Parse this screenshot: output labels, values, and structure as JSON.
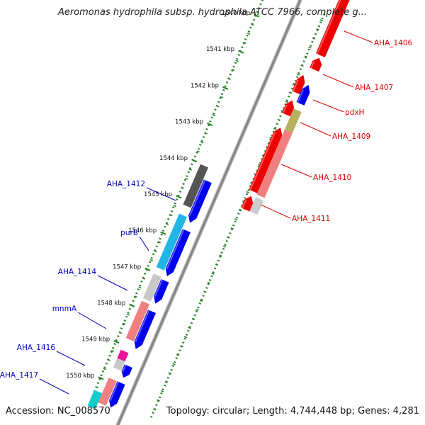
{
  "title": "Aeromonas hydrophila subsp. hydrophila ATCC 7966, complete g...",
  "accession": "Accession: NC_008570",
  "topology": "Topology: circular; Length: 4,744,448 bp; Genes: 4,281",
  "colors": {
    "label_right": "#dd0000",
    "label_left": "#0000bb",
    "backbone": "#888888",
    "gc_dots": "#2a8a2a",
    "tick": "#2a7a2a"
  },
  "ticks": [
    {
      "label": "1540 kbp"
    },
    {
      "label": "1541 kbp"
    },
    {
      "label": "1542 kbp"
    },
    {
      "label": "1543 kbp"
    },
    {
      "label": "1544 kbp"
    },
    {
      "label": "1545 kbp"
    },
    {
      "label": "1546 kbp"
    },
    {
      "label": "1547 kbp"
    },
    {
      "label": "1548 kbp"
    },
    {
      "label": "1549 kbp"
    },
    {
      "label": "1550 kbp"
    }
  ],
  "labels_right": [
    "AHA_1406",
    "AHA_1407",
    "pdxH",
    "AHA_1409",
    "AHA_1410",
    "AHA_1411"
  ],
  "labels_left": [
    "AHA_1412",
    "purB",
    "AHA_1414",
    "mnmA",
    "AHA_1416",
    "AHA_1417"
  ]
}
